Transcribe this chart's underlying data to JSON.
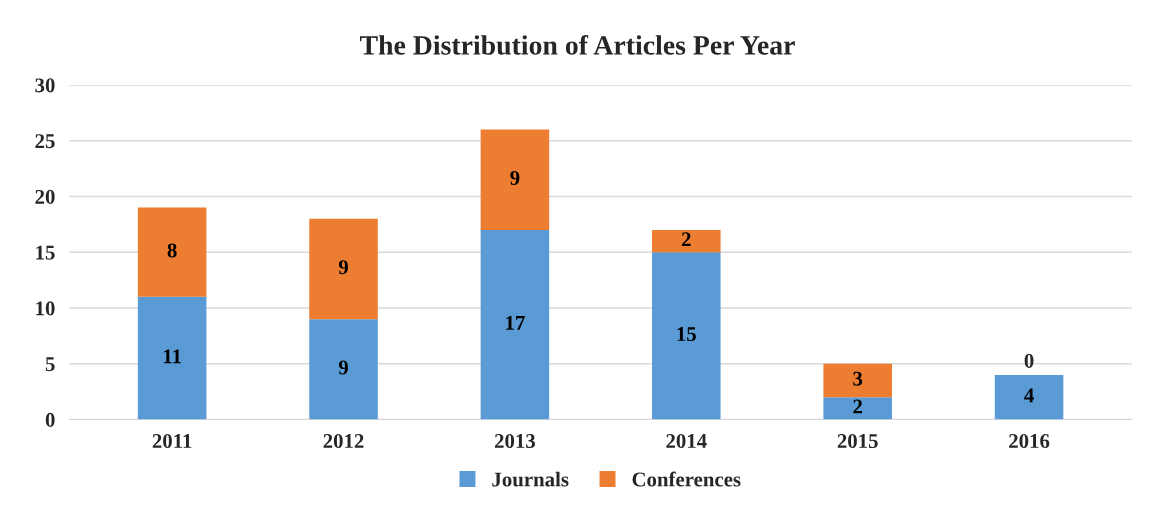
{
  "chart_data": {
    "type": "bar",
    "title": "The Distribution of Articles Per Year",
    "categories": [
      "2011",
      "2012",
      "2013",
      "2014",
      "2015",
      "2016"
    ],
    "series": [
      {
        "name": "Journals",
        "color": "#5b9bd5",
        "values": [
          11,
          9,
          17,
          15,
          2,
          4
        ]
      },
      {
        "name": "Conferences",
        "color": "#ed7d31",
        "values": [
          8,
          9,
          9,
          2,
          3,
          0
        ]
      }
    ],
    "stacked": true,
    "ylim": [
      0,
      30
    ],
    "yticks": [
      0,
      5,
      10,
      15,
      20,
      25,
      30
    ],
    "grid": "y",
    "legend": "bottom",
    "data_labels": true
  }
}
